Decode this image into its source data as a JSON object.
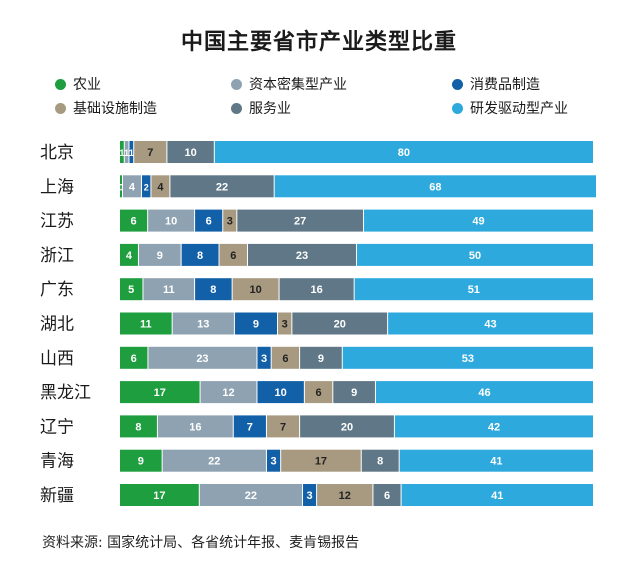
{
  "chart_data": {
    "type": "bar",
    "title": "中国主要省市产业类型比重",
    "categories": [
      "北京",
      "上海",
      "江苏",
      "浙江",
      "广东",
      "湖北",
      "山西",
      "黑龙江",
      "辽宁",
      "青海",
      "新疆"
    ],
    "series": [
      {
        "name": "农业",
        "color": "#1f9e3f",
        "values": [
          1,
          0,
          6,
          4,
          5,
          11,
          6,
          17,
          8,
          9,
          17
        ]
      },
      {
        "name": "资本密集型产业",
        "color": "#8ea2b2",
        "values": [
          1,
          4,
          10,
          9,
          11,
          13,
          23,
          12,
          16,
          22,
          22
        ]
      },
      {
        "name": "消费品制造",
        "color": "#1260a8",
        "values": [
          1,
          2,
          6,
          8,
          8,
          9,
          3,
          10,
          7,
          3,
          3
        ]
      },
      {
        "name": "基础设施制造",
        "color": "#a89a80",
        "values": [
          7,
          4,
          3,
          6,
          10,
          3,
          6,
          6,
          7,
          17,
          12
        ]
      },
      {
        "name": "服务业",
        "color": "#5f7787",
        "values": [
          10,
          22,
          27,
          23,
          16,
          20,
          9,
          9,
          20,
          8,
          6
        ]
      },
      {
        "name": "研发驱动型产业",
        "color": "#2ea9dd",
        "values": [
          80,
          68,
          49,
          50,
          51,
          43,
          53,
          46,
          42,
          41,
          41
        ]
      }
    ],
    "stacked": true,
    "orientation": "horizontal",
    "data_labels": true,
    "grid": false,
    "legend_position": "top"
  },
  "source": "资料来源: 国家统计局、各省统计年报、麦肯锡报告"
}
